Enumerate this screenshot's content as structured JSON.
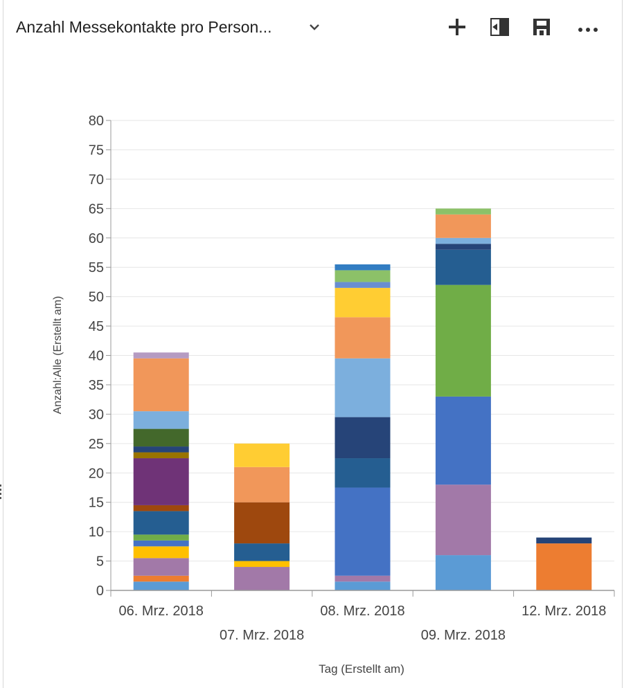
{
  "header": {
    "title": "Anzahl Messekontakte pro Person...",
    "icons": [
      "chevron-down-icon",
      "plus-icon",
      "expand-panel-icon",
      "save-icon",
      "more-icon"
    ]
  },
  "chart_data": {
    "type": "bar",
    "stacked": true,
    "categories": [
      "06. Mrz. 2018",
      "07. Mrz. 2018",
      "08. Mrz. 2018",
      "09. Mrz. 2018",
      "12. Mrz. 2018"
    ],
    "ylabel": "Anzahl:Alle (Erstellt am)",
    "xlabel": "Tag (Erstellt am)",
    "ylim": [
      0,
      80
    ],
    "yticks": [
      0,
      5,
      10,
      15,
      20,
      25,
      30,
      35,
      40,
      45,
      50,
      55,
      60,
      65,
      70,
      75,
      80
    ],
    "grid": true,
    "stacks": [
      [
        {
          "value": 1.5,
          "color": "#5b9bd5"
        },
        {
          "value": 1,
          "color": "#ed7d31"
        },
        {
          "value": 3,
          "color": "#a279a8"
        },
        {
          "value": 2,
          "color": "#ffc000"
        },
        {
          "value": 1,
          "color": "#4472c4"
        },
        {
          "value": 1,
          "color": "#70ad47"
        },
        {
          "value": 4,
          "color": "#255e91"
        },
        {
          "value": 1,
          "color": "#9e480e"
        },
        {
          "value": 8,
          "color": "#6f3377"
        },
        {
          "value": 1,
          "color": "#997300"
        },
        {
          "value": 1,
          "color": "#264478"
        },
        {
          "value": 3,
          "color": "#43682b"
        },
        {
          "value": 3,
          "color": "#7cafdd"
        },
        {
          "value": 9,
          "color": "#f1975a"
        },
        {
          "value": 1,
          "color": "#b59bc2"
        }
      ],
      [
        {
          "value": 4,
          "color": "#a279a8"
        },
        {
          "value": 1,
          "color": "#ffc000"
        },
        {
          "value": 3,
          "color": "#255e91"
        },
        {
          "value": 7,
          "color": "#9e480e"
        },
        {
          "value": 6,
          "color": "#f1975a"
        },
        {
          "value": 4,
          "color": "#ffcd33"
        }
      ],
      [
        {
          "value": 1.5,
          "color": "#5b9bd5"
        },
        {
          "value": 1,
          "color": "#a279a8"
        },
        {
          "value": 15,
          "color": "#4472c4"
        },
        {
          "value": 5,
          "color": "#255e91"
        },
        {
          "value": 7,
          "color": "#264478"
        },
        {
          "value": 10,
          "color": "#7cafdd"
        },
        {
          "value": 7,
          "color": "#f1975a"
        },
        {
          "value": 5,
          "color": "#ffcd33"
        },
        {
          "value": 1,
          "color": "#698ed0"
        },
        {
          "value": 2,
          "color": "#8cc168"
        },
        {
          "value": 1,
          "color": "#327dc2"
        }
      ],
      [
        {
          "value": 6,
          "color": "#5b9bd5"
        },
        {
          "value": 12,
          "color": "#a279a8"
        },
        {
          "value": 15,
          "color": "#4472c4"
        },
        {
          "value": 19,
          "color": "#70ad47"
        },
        {
          "value": 6,
          "color": "#255e91"
        },
        {
          "value": 1,
          "color": "#264478"
        },
        {
          "value": 1,
          "color": "#7cafdd"
        },
        {
          "value": 4,
          "color": "#f1975a"
        },
        {
          "value": 1,
          "color": "#8cc168"
        }
      ],
      [
        {
          "value": 8,
          "color": "#ed7d31"
        },
        {
          "value": 1,
          "color": "#264478"
        }
      ]
    ]
  }
}
